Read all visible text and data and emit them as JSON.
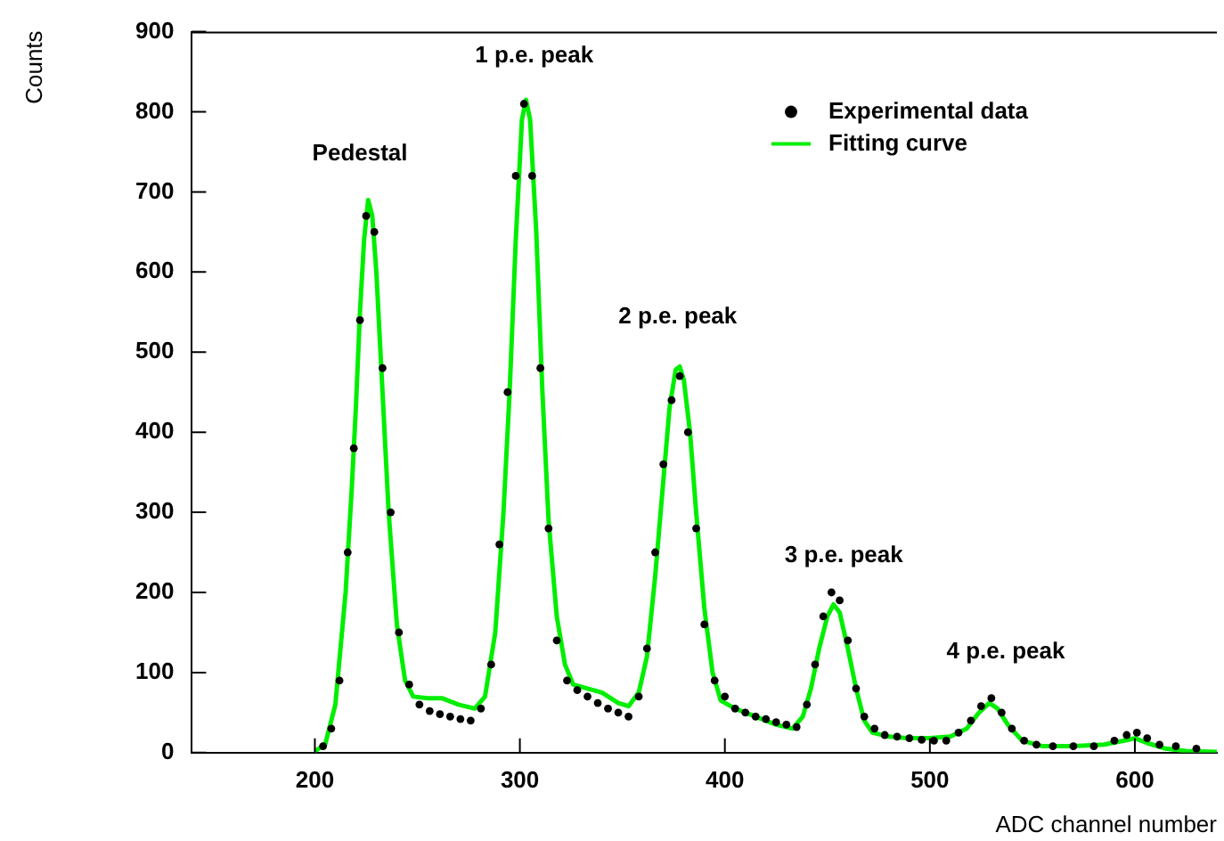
{
  "chart_data": {
    "type": "scatter",
    "xlabel": "ADC channel number",
    "ylabel": "Counts",
    "xlim": [
      140,
      640
    ],
    "xticks": [
      200,
      300,
      400,
      500,
      600
    ],
    "ylim": [
      0,
      900
    ],
    "yticks": [
      0,
      100,
      200,
      300,
      400,
      500,
      600,
      700,
      800,
      900
    ],
    "grid": false,
    "legend": "top right",
    "marker": "circle",
    "line_style": "solid",
    "annotations": [
      "Pedestal",
      "1 p.e. peak",
      "2 p.e. peak",
      "3 p.e. peak",
      "4 p.e. peak"
    ],
    "series": [
      {
        "name": "Experimental data",
        "color": "#000000",
        "x": [
          204,
          208,
          212,
          216,
          219,
          222,
          225,
          229,
          233,
          237,
          241,
          246,
          251,
          256,
          261,
          266,
          271,
          276,
          281,
          286,
          290,
          294,
          298,
          302,
          306,
          310,
          314,
          318,
          323,
          328,
          333,
          338,
          343,
          348,
          353,
          358,
          362,
          366,
          370,
          374,
          378,
          382,
          386,
          390,
          395,
          400,
          405,
          410,
          415,
          420,
          425,
          430,
          435,
          440,
          444,
          448,
          452,
          456,
          460,
          464,
          468,
          473,
          478,
          484,
          490,
          496,
          502,
          508,
          514,
          520,
          525,
          530,
          535,
          540,
          546,
          552,
          560,
          570,
          580,
          590,
          596,
          601,
          606,
          612,
          620,
          630
        ],
        "values": [
          8,
          30,
          90,
          250,
          380,
          540,
          670,
          650,
          480,
          300,
          150,
          85,
          60,
          52,
          48,
          45,
          42,
          40,
          55,
          110,
          260,
          450,
          720,
          810,
          720,
          480,
          280,
          140,
          90,
          78,
          70,
          62,
          55,
          50,
          45,
          70,
          130,
          250,
          360,
          440,
          470,
          400,
          280,
          160,
          90,
          70,
          55,
          50,
          45,
          42,
          38,
          35,
          32,
          60,
          110,
          170,
          200,
          190,
          140,
          80,
          45,
          30,
          22,
          20,
          18,
          16,
          15,
          15,
          25,
          40,
          58,
          68,
          50,
          30,
          15,
          10,
          8,
          8,
          8,
          15,
          22,
          25,
          18,
          10,
          8,
          5
        ]
      },
      {
        "name": "Fitting curve",
        "type": "line",
        "marker": "none",
        "color": "#00ee00",
        "x": [
          200,
          205,
          210,
          215,
          218,
          220,
          222,
          224,
          226,
          228,
          230,
          233,
          236,
          240,
          244,
          248,
          255,
          262,
          270,
          278,
          283,
          288,
          292,
          295,
          298,
          301,
          303,
          305,
          308,
          311,
          314,
          318,
          322,
          326,
          333,
          340,
          348,
          353,
          358,
          362,
          366,
          370,
          373,
          376,
          378,
          380,
          383,
          386,
          390,
          394,
          398,
          405,
          415,
          425,
          433,
          438,
          442,
          446,
          450,
          453,
          456,
          460,
          464,
          468,
          472,
          480,
          490,
          500,
          510,
          518,
          524,
          529,
          533,
          538,
          545,
          555,
          570,
          585,
          595,
          600,
          606,
          615,
          625,
          640
        ],
        "values": [
          2,
          10,
          60,
          200,
          330,
          430,
          550,
          640,
          690,
          670,
          600,
          450,
          300,
          160,
          90,
          70,
          68,
          68,
          60,
          55,
          70,
          150,
          300,
          450,
          640,
          790,
          815,
          790,
          650,
          450,
          290,
          170,
          110,
          85,
          80,
          75,
          62,
          58,
          75,
          120,
          220,
          340,
          430,
          478,
          482,
          465,
          400,
          300,
          180,
          100,
          65,
          55,
          45,
          35,
          30,
          45,
          80,
          130,
          170,
          185,
          175,
          130,
          80,
          40,
          25,
          20,
          18,
          18,
          20,
          30,
          50,
          62,
          55,
          35,
          15,
          8,
          8,
          10,
          15,
          18,
          12,
          5,
          2,
          1
        ]
      }
    ]
  }
}
